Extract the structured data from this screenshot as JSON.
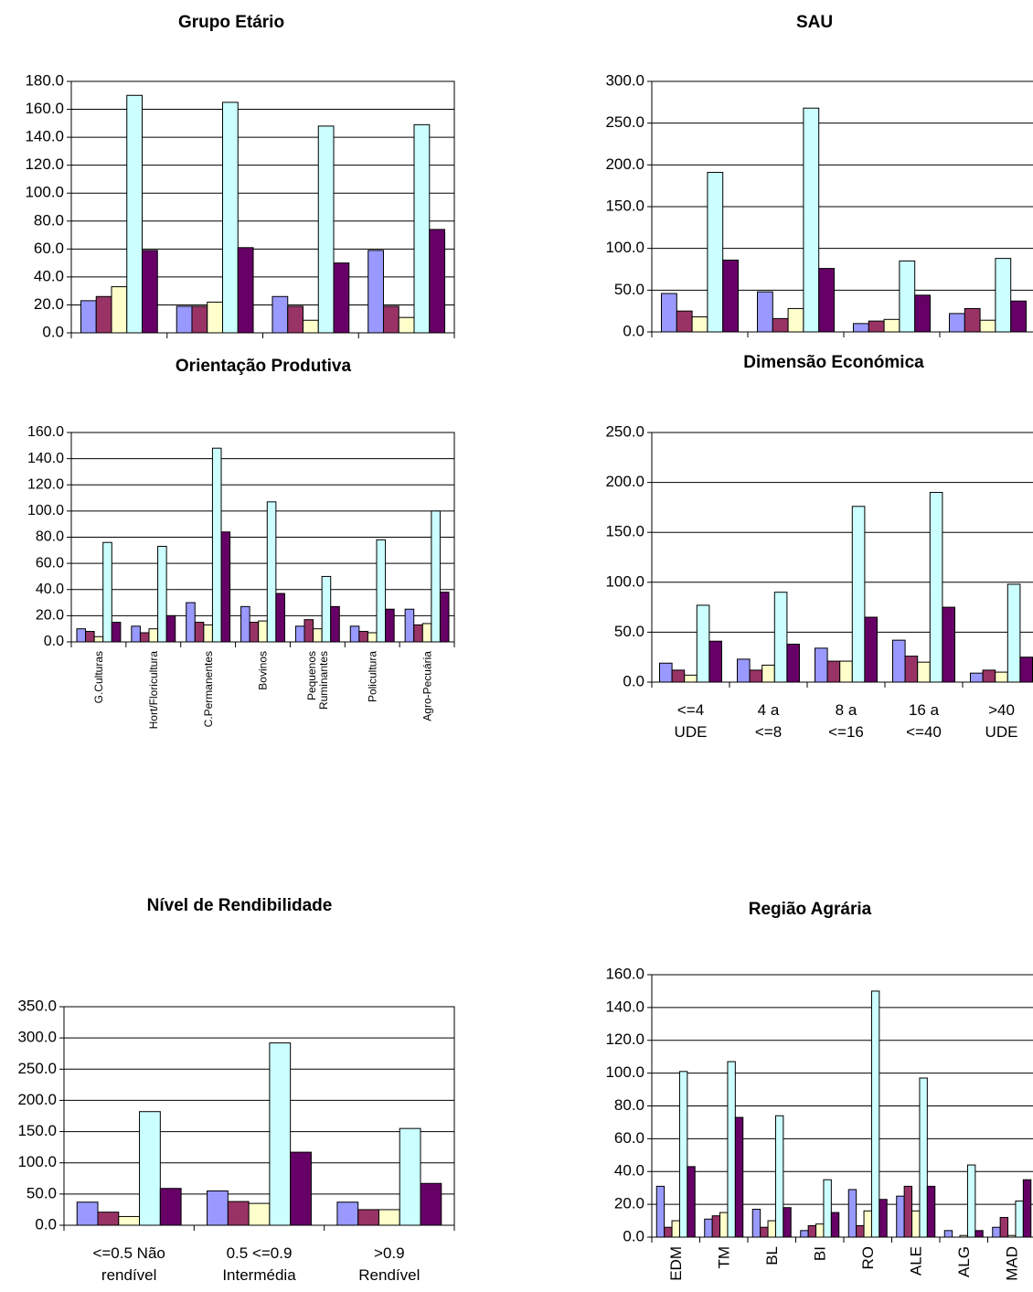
{
  "chart_data": [
    {
      "type": "bar",
      "title": "Grupo Etário",
      "categories": [
        null,
        null,
        null,
        null
      ],
      "series": [
        {
          "color": "#9999ff",
          "values": [
            23,
            19,
            26,
            59
          ]
        },
        {
          "color": "#993366",
          "values": [
            26,
            19,
            19,
            19
          ]
        },
        {
          "color": "#ffffcc",
          "values": [
            33,
            22,
            9,
            11
          ]
        },
        {
          "color": "#ccffff",
          "values": [
            170,
            165,
            148,
            149
          ]
        },
        {
          "color": "#660066",
          "values": [
            59,
            61,
            50,
            74
          ]
        }
      ],
      "ylim": [
        0,
        180
      ],
      "yticks": [
        {
          "value": 0,
          "label": "0.0"
        },
        {
          "value": 20,
          "label": "20.0"
        },
        {
          "value": 40,
          "label": "40.0"
        },
        {
          "value": 60,
          "label": "60.0"
        },
        {
          "value": 80,
          "label": "80.0"
        },
        {
          "value": 100,
          "label": "100.0"
        },
        {
          "value": 120,
          "label": "120.0"
        },
        {
          "value": 140,
          "label": "140.0"
        },
        {
          "value": 160,
          "label": "160.0"
        },
        {
          "value": 180,
          "label": "180.0"
        }
      ],
      "grid": true
    },
    {
      "type": "bar",
      "title": "SAU",
      "categories": [
        null,
        null,
        null,
        null
      ],
      "series": [
        {
          "color": "#9999ff",
          "values": [
            46,
            48,
            10,
            22
          ]
        },
        {
          "color": "#993366",
          "values": [
            25,
            16,
            13,
            28
          ]
        },
        {
          "color": "#ffffcc",
          "values": [
            18,
            28,
            15,
            14
          ]
        },
        {
          "color": "#ccffff",
          "values": [
            191,
            268,
            85,
            88
          ]
        },
        {
          "color": "#660066",
          "values": [
            86,
            76,
            44,
            37
          ]
        }
      ],
      "ylim": [
        0,
        300
      ],
      "yticks": [
        {
          "value": 0,
          "label": "0.0"
        },
        {
          "value": 50,
          "label": "50.0"
        },
        {
          "value": 100,
          "label": "100.0"
        },
        {
          "value": 150,
          "label": "150.0"
        },
        {
          "value": 200,
          "label": "200.0"
        },
        {
          "value": 250,
          "label": "250.0"
        },
        {
          "value": 300,
          "label": "300.0"
        }
      ],
      "grid": true
    },
    {
      "type": "bar",
      "title": "Orientação Produtiva",
      "categories": [
        "G.Culturas",
        "Hort/Floricultura",
        "C.Permanentes",
        "Bovinos",
        "Pequenos Ruminantes",
        "Policultura",
        "Agro-Pecuária"
      ],
      "series": [
        {
          "color": "#9999ff",
          "values": [
            10,
            12,
            30,
            27,
            12,
            12,
            25
          ]
        },
        {
          "color": "#993366",
          "values": [
            8,
            7,
            15,
            15,
            17,
            8,
            13
          ]
        },
        {
          "color": "#ffffcc",
          "values": [
            4,
            10,
            13,
            16,
            10,
            7,
            14
          ]
        },
        {
          "color": "#ccffff",
          "values": [
            76,
            73,
            148,
            107,
            50,
            78,
            100
          ]
        },
        {
          "color": "#660066",
          "values": [
            15,
            20,
            84,
            37,
            27,
            25,
            38
          ]
        }
      ],
      "ylim": [
        0,
        160
      ],
      "yticks": [
        {
          "value": 0,
          "label": "0.0"
        },
        {
          "value": 20,
          "label": "20.0"
        },
        {
          "value": 40,
          "label": "40.0"
        },
        {
          "value": 60,
          "label": "60.0"
        },
        {
          "value": 80,
          "label": "80.0"
        },
        {
          "value": 100,
          "label": "100.0"
        },
        {
          "value": 120,
          "label": "120.0"
        },
        {
          "value": 140,
          "label": "140.0"
        },
        {
          "value": 160,
          "label": "160.0"
        }
      ],
      "grid": true
    },
    {
      "type": "bar",
      "title": "Dimensão Económica",
      "categories": [
        "<=4 UDE",
        "4 a <=8",
        "8 a <=16",
        "16 a <=40",
        ">40 UDE"
      ],
      "series": [
        {
          "color": "#9999ff",
          "values": [
            19,
            23,
            34,
            42,
            9
          ]
        },
        {
          "color": "#993366",
          "values": [
            12,
            12,
            21,
            26,
            12
          ]
        },
        {
          "color": "#ffffcc",
          "values": [
            7,
            17,
            21,
            20,
            10
          ]
        },
        {
          "color": "#ccffff",
          "values": [
            77,
            90,
            176,
            190,
            98
          ]
        },
        {
          "color": "#660066",
          "values": [
            41,
            38,
            65,
            75,
            25
          ]
        }
      ],
      "ylim": [
        0,
        250
      ],
      "yticks": [
        {
          "value": 0,
          "label": "0.0"
        },
        {
          "value": 50,
          "label": "50.0"
        },
        {
          "value": 100,
          "label": "100.0"
        },
        {
          "value": 150,
          "label": "150.0"
        },
        {
          "value": 200,
          "label": "200.0"
        },
        {
          "value": 250,
          "label": "250.0"
        }
      ],
      "grid": true
    },
    {
      "type": "bar",
      "title": "Nível de Rendibilidade",
      "categories": [
        "<=0.5 Não rendível",
        "0.5 <=0.9 Intermédia",
        ">0.9 Rendível"
      ],
      "series": [
        {
          "color": "#9999ff",
          "values": [
            37,
            55,
            37
          ]
        },
        {
          "color": "#993366",
          "values": [
            21,
            38,
            25
          ]
        },
        {
          "color": "#ffffcc",
          "values": [
            14,
            35,
            25
          ]
        },
        {
          "color": "#ccffff",
          "values": [
            182,
            292,
            155
          ]
        },
        {
          "color": "#660066",
          "values": [
            59,
            117,
            67
          ]
        }
      ],
      "ylim": [
        0,
        350
      ],
      "yticks": [
        {
          "value": 0,
          "label": "0.0"
        },
        {
          "value": 50,
          "label": "50.0"
        },
        {
          "value": 100,
          "label": "100.0"
        },
        {
          "value": 150,
          "label": "150.0"
        },
        {
          "value": 200,
          "label": "200.0"
        },
        {
          "value": 250,
          "label": "250.0"
        },
        {
          "value": 300,
          "label": "300.0"
        },
        {
          "value": 350,
          "label": "350.0"
        }
      ],
      "grid": true
    },
    {
      "type": "bar",
      "title": "Região Agrária",
      "categories": [
        "EDM",
        "TM",
        "BL",
        "BI",
        "RO",
        "ALE",
        "ALG",
        "MAD"
      ],
      "series": [
        {
          "color": "#9999ff",
          "values": [
            31,
            11,
            17,
            4,
            29,
            25,
            4,
            6
          ]
        },
        {
          "color": "#993366",
          "values": [
            6,
            13,
            6,
            7,
            7,
            31,
            0,
            12
          ]
        },
        {
          "color": "#ffffcc",
          "values": [
            10,
            15,
            10,
            8,
            16,
            16,
            1,
            1
          ]
        },
        {
          "color": "#ccffff",
          "values": [
            101,
            107,
            74,
            35,
            150,
            97,
            44,
            22
          ]
        },
        {
          "color": "#660066",
          "values": [
            43,
            73,
            18,
            15,
            23,
            31,
            4,
            35
          ]
        }
      ],
      "ylim": [
        0,
        160
      ],
      "yticks": [
        {
          "value": 0,
          "label": "0.0"
        },
        {
          "value": 20,
          "label": "20.0"
        },
        {
          "value": 40,
          "label": "40.0"
        },
        {
          "value": 60,
          "label": "60.0"
        },
        {
          "value": 80,
          "label": "80.0"
        },
        {
          "value": 100,
          "label": "100.0"
        },
        {
          "value": 120,
          "label": "120.0"
        },
        {
          "value": 140,
          "label": "140.0"
        },
        {
          "value": 160,
          "label": "160.0"
        }
      ],
      "grid": true
    }
  ]
}
